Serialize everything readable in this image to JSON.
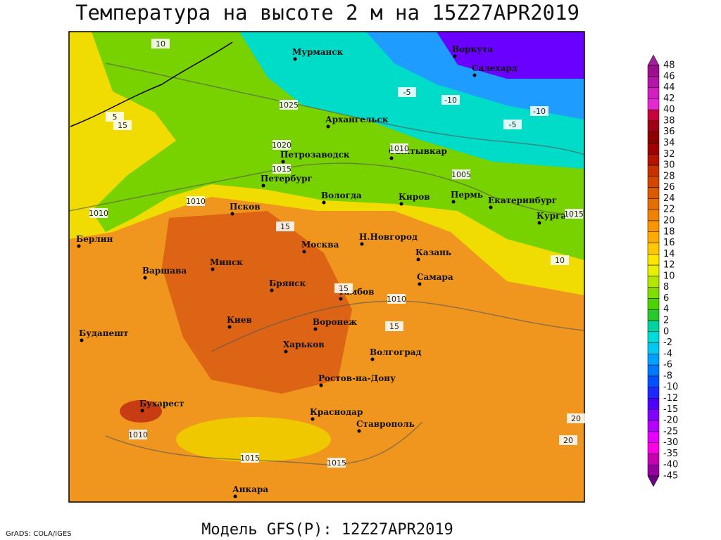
{
  "title": "Температура на высоте 2 м на 15Z27APR2019",
  "footer": "Модель GFS(P): 12Z27APR2019",
  "credit": "GrADS: COLA/IGES",
  "cities": [
    "Мурманск",
    "Архангельск",
    "Петрозаводск",
    "Петербург",
    "Сыктывкар",
    "Воркута",
    "Салехард",
    "Вологда",
    "Киров",
    "Пермь",
    "Екатеринбург",
    "Курган",
    "Псков",
    "Берлин",
    "Москва",
    "Н.Новгород",
    "Казань",
    "Варшава",
    "Минск",
    "Брянск",
    "Тамбов",
    "Самара",
    "Киев",
    "Воронеж",
    "Будапешт",
    "Харьков",
    "Волгоград",
    "Ростов-на-Дону",
    "Бухарест",
    "Краснодар",
    "Ставрополь",
    "Анкара"
  ],
  "contour_labels": [
    "1025",
    "1020",
    "1015",
    "1010",
    "1010",
    "1010",
    "1005",
    "1015",
    "1010",
    "1010",
    "1015",
    "1015",
    "10",
    "5",
    "15",
    "15",
    "15",
    "15",
    "-5",
    "-10",
    "-10",
    "-5",
    "10",
    "20",
    "20"
  ],
  "colorbar": {
    "labels": [
      48,
      46,
      44,
      42,
      40,
      38,
      36,
      34,
      32,
      30,
      28,
      26,
      24,
      22,
      20,
      18,
      16,
      14,
      12,
      10,
      8,
      6,
      4,
      2,
      0,
      -2,
      -4,
      -6,
      -8,
      -10,
      -12,
      -15,
      -20,
      -25,
      -30,
      -35,
      -40,
      -45
    ],
    "colors": [
      "#a0209a",
      "#9c1090",
      "#b414a8",
      "#d21ebe",
      "#e628d2",
      "#c8003c",
      "#a00014",
      "#8c0000",
      "#a00000",
      "#b41400",
      "#c83200",
      "#d24600",
      "#dc5a00",
      "#e66e00",
      "#f08200",
      "#fa9600",
      "#ffaa00",
      "#ffc800",
      "#ffe600",
      "#e6f000",
      "#b4e600",
      "#82dc00",
      "#50d200",
      "#28c828",
      "#00d2a0",
      "#00dcdc",
      "#00c8f0",
      "#00a0ff",
      "#0078ff",
      "#0050ff",
      "#1e28ff",
      "#5000ff",
      "#8200ff",
      "#b400ff",
      "#e600ff",
      "#ff00e6",
      "#c800b4",
      "#9600a0",
      "#6e0082"
    ]
  }
}
